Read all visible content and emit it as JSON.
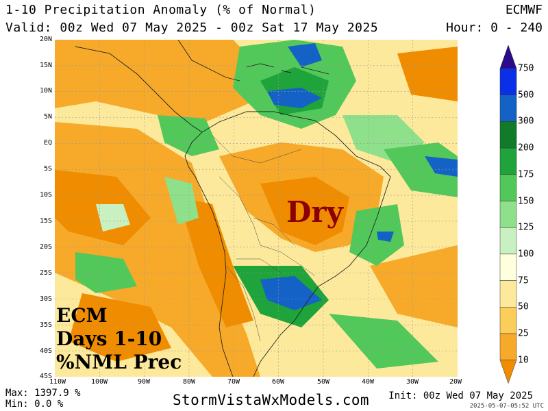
{
  "header": {
    "title": "1-10 Precipitation Anomaly (% of Normal)",
    "valid": "Valid: 00z Wed 07 May 2025 - 00z Sat 17 May 2025",
    "model": "ECMWF",
    "hour": "Hour: 0 - 240"
  },
  "map": {
    "lat_labels": [
      "20N",
      "15N",
      "10N",
      "5N",
      "EQ",
      "5S",
      "10S",
      "15S",
      "20S",
      "25S",
      "30S",
      "35S",
      "40S",
      "45S"
    ],
    "lon_labels": [
      "110W",
      "100W",
      "90W",
      "80W",
      "70W",
      "60W",
      "50W",
      "40W",
      "30W",
      "20W"
    ],
    "annotation_dry": "Dry",
    "overlay_lines": [
      "ECM",
      "Days 1-10",
      "%NML Prec"
    ]
  },
  "legend": {
    "levels": [
      "10",
      "25",
      "50",
      "75",
      "100",
      "125",
      "150",
      "175",
      "200",
      "300",
      "500",
      "750"
    ],
    "colors": [
      "#f08c00",
      "#f7a929",
      "#fbcd5a",
      "#fde99b",
      "#fffedd",
      "#c9f0c0",
      "#8fe08a",
      "#52c85a",
      "#1ea43a",
      "#117b2a",
      "#1462c6",
      "#0a2fe6",
      "#2a0b8a"
    ]
  },
  "footer": {
    "max": "Max: 1397.9 %",
    "min": "Min: 0.0 %",
    "site": "StormVistaWxModels.com",
    "init": "Init: 00z Wed 07 May 2025",
    "stamp": "2025-05-07-05:52 UTC"
  }
}
